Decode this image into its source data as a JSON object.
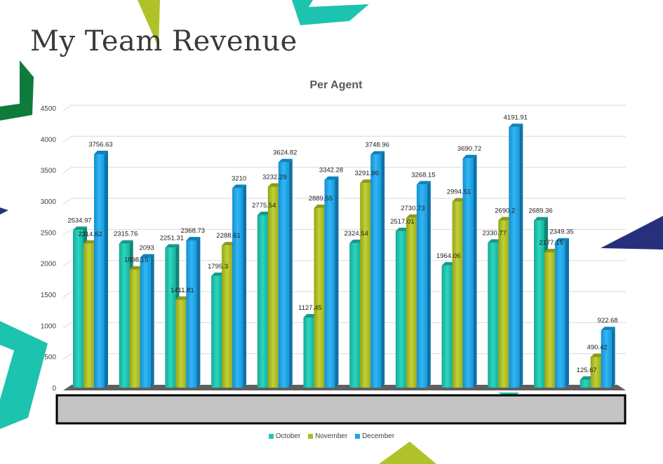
{
  "page": {
    "title": "My Team Revenue"
  },
  "colors": {
    "october": "#1fc6b2",
    "november": "#aebf22",
    "december": "#1ba6e8",
    "grid": "#d9d9d9",
    "floor": "#5f5f5f",
    "hidden_box": "#c4c4c4"
  },
  "chart_data": {
    "type": "bar",
    "title": "Per Agent",
    "categories": [
      "",
      "",
      "",
      "",
      "",
      "",
      "",
      "",
      "",
      "",
      "",
      ""
    ],
    "series": [
      {
        "name": "October",
        "values": [
          2534.97,
          2315.76,
          2251.31,
          1795.3,
          2775.54,
          1127.45,
          2324.54,
          2517.01,
          1964.06,
          2330.77,
          2689.36,
          125.67
        ]
      },
      {
        "name": "November",
        "values": [
          2314.62,
          1898.15,
          1411.81,
          2288.61,
          3232.29,
          2889.55,
          3291.96,
          2730.73,
          2994.51,
          2690.2,
          2177.15,
          490.42
        ]
      },
      {
        "name": "December",
        "values": [
          3756.63,
          2093,
          2368.73,
          3210,
          3624.82,
          3342.28,
          3748.96,
          3268.15,
          3690.72,
          4191.91,
          2349.35,
          922.68
        ]
      }
    ],
    "value_labels": [
      [
        "2534.97",
        "2315.76",
        "2251.31",
        "1795.3",
        "2775.54",
        "1127.45",
        "2324.54",
        "2517.01",
        "1964.06",
        "2330.77",
        "2689.36",
        "125.67"
      ],
      [
        "2314.62",
        "1898.15",
        "1411.81",
        "2288.61",
        "3232.29",
        "2889.55",
        "3291.96",
        "2730.73",
        "2994.51",
        "2690.2",
        "2177.15",
        "490.42"
      ],
      [
        "3756.63",
        "2093",
        "2368.73",
        "3210",
        "3624.82",
        "3342.28",
        "3748.96",
        "3268.15",
        "3690.72",
        "4191.91",
        "2349.35",
        "922.68"
      ]
    ],
    "y_ticks": [
      "0",
      "500",
      "1000",
      "1500",
      "2000",
      "2500",
      "3000",
      "3500",
      "4000",
      "4500"
    ],
    "ylim": [
      0,
      4500
    ],
    "grid": true,
    "legend_position": "bottom",
    "style": "3d-columns"
  }
}
